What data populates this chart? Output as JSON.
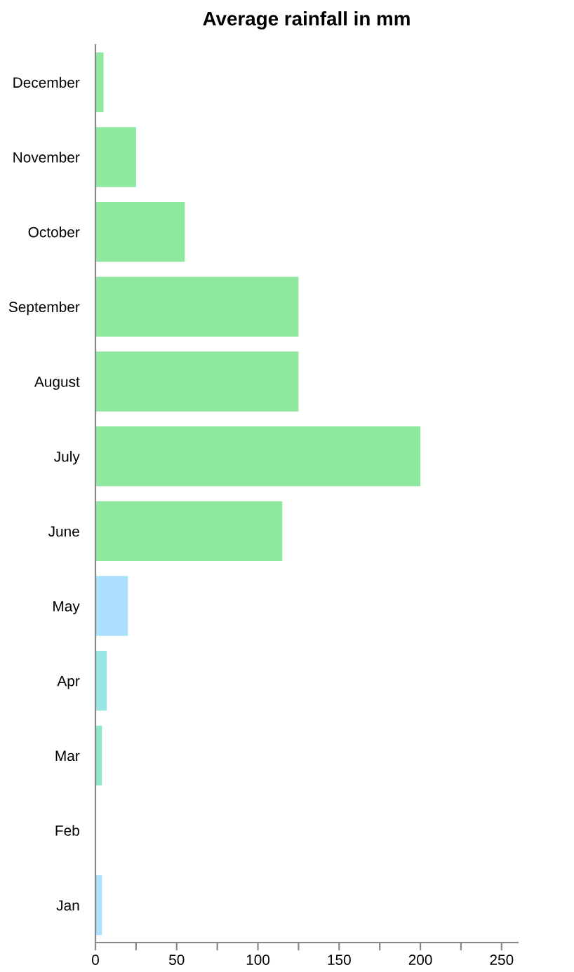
{
  "chart_data": {
    "type": "bar",
    "orientation": "horizontal",
    "title": "Average rainfall in mm",
    "categories": [
      "December",
      "November",
      "October",
      "September",
      "August",
      "July",
      "June",
      "May",
      "Apr",
      "Mar",
      "Feb",
      "Jan"
    ],
    "values": [
      5,
      25,
      55,
      125,
      125,
      200,
      115,
      20,
      7,
      4,
      0,
      4
    ],
    "colors": [
      "#8ee89e",
      "#8ee89e",
      "#8ee89e",
      "#8ee89e",
      "#8ee89e",
      "#8ee89e",
      "#8ee89e",
      "#addffe",
      "#99e4e4",
      "#8ee8c8",
      "#8ee8c8",
      "#addffe"
    ],
    "xlim": [
      0,
      260
    ],
    "xticks": [
      0,
      {
        "value": 25,
        "label": null
      },
      50,
      {
        "value": 75,
        "label": null
      },
      100,
      {
        "value": 125,
        "label": null
      },
      150,
      {
        "value": 175,
        "label": null
      },
      200,
      {
        "value": 225,
        "label": null
      },
      250
    ],
    "grid": false,
    "legend": false
  }
}
